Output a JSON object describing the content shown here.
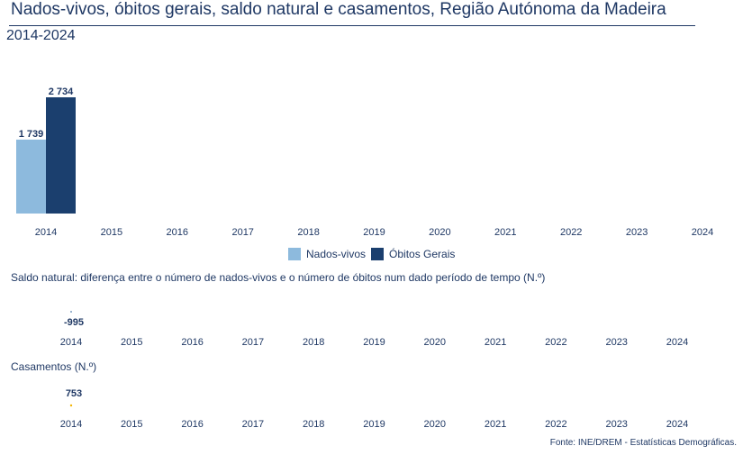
{
  "title": "Nados-vivos, óbitos gerais, saldo natural e casamentos, Região Autónoma da Madeira",
  "subtitle": "2014-2024",
  "colors": {
    "text": "#1f3864",
    "nados_vivos": "#8dbadd",
    "obitos": "#1b3f6e",
    "saldo_marker": "#7a9cc0",
    "casamentos_marker": "#f4b400"
  },
  "legend": {
    "nados_vivos": "Nados-vivos",
    "obitos": "Óbitos Gerais"
  },
  "saldo_label": "Saldo natural: diferença entre o número de nados-vivos e o número de óbitos num dado período de tempo (N.º)",
  "casamentos_label": "Casamentos (N.º)",
  "source": "Fonte: INE/DREM - Estatísticas Demográficas.",
  "chart_data": [
    {
      "type": "bar",
      "categories": [
        "2014",
        "2015",
        "2016",
        "2017",
        "2018",
        "2019",
        "2020",
        "2021",
        "2022",
        "2023",
        "2024"
      ],
      "series": [
        {
          "name": "Nados-vivos",
          "values": [
            1739,
            null,
            null,
            null,
            null,
            null,
            null,
            null,
            null,
            null,
            null
          ],
          "labels": [
            "1 739"
          ]
        },
        {
          "name": "Óbitos Gerais",
          "values": [
            2734,
            null,
            null,
            null,
            null,
            null,
            null,
            null,
            null,
            null,
            null
          ],
          "labels": [
            "2 734"
          ]
        }
      ],
      "legend": "bottom-center",
      "grid": false
    },
    {
      "type": "line",
      "categories": [
        "2014",
        "2015",
        "2016",
        "2017",
        "2018",
        "2019",
        "2020",
        "2021",
        "2022",
        "2023",
        "2024"
      ],
      "values": [
        -995,
        null,
        null,
        null,
        null,
        null,
        null,
        null,
        null,
        null,
        null
      ],
      "labels": [
        "-995"
      ]
    },
    {
      "type": "line",
      "categories": [
        "2014",
        "2015",
        "2016",
        "2017",
        "2018",
        "2019",
        "2020",
        "2021",
        "2022",
        "2023",
        "2024"
      ],
      "values": [
        753,
        null,
        null,
        null,
        null,
        null,
        null,
        null,
        null,
        null,
        null
      ],
      "labels": [
        "753"
      ]
    }
  ]
}
